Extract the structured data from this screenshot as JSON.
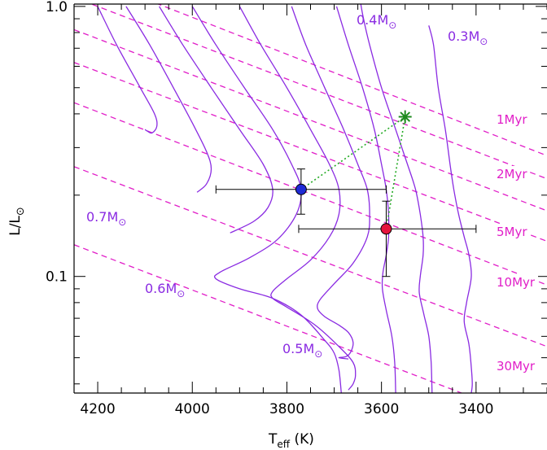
{
  "chart_data": {
    "type": "scatter",
    "xlabel": {
      "main": "T",
      "sub": "eff",
      "unit": " (K)"
    },
    "ylabel": {
      "main": "L/L",
      "sun": "⊙"
    },
    "x_axis": {
      "reversed": true,
      "xlim": [
        4250,
        3250
      ],
      "ticks": [
        4200,
        4000,
        3800,
        3600,
        3400
      ],
      "tick_labels": [
        "4200",
        "4000",
        "3800",
        "3600",
        "3400"
      ]
    },
    "y_axis": {
      "log": true,
      "ylim": [
        0.037,
        1.02
      ],
      "ticks": [
        0.1,
        1.0
      ],
      "tick_labels": [
        "0.1",
        "1.0"
      ]
    },
    "mass_tracks": {
      "color": "#8a2be2",
      "labels": [
        {
          "text": "0.7M",
          "sun": "⊙"
        },
        {
          "text": "0.6M",
          "sun": "⊙"
        },
        {
          "text": "0.5M",
          "sun": "⊙"
        },
        {
          "text": "0.4M",
          "sun": "⊙"
        },
        {
          "text": "0.3M",
          "sun": "⊙"
        }
      ],
      "tracks": [
        [
          [
            4200,
            1.0
          ],
          [
            4160,
            0.72
          ],
          [
            4110,
            0.5
          ],
          [
            4080,
            0.4
          ],
          [
            4075,
            0.36
          ],
          [
            4085,
            0.34
          ],
          [
            4095,
            0.345
          ],
          [
            4100,
            0.35
          ]
        ],
        [
          [
            4140,
            1.0
          ],
          [
            4090,
            0.72
          ],
          [
            4040,
            0.5
          ],
          [
            4000,
            0.37
          ],
          [
            3970,
            0.29
          ],
          [
            3960,
            0.25
          ],
          [
            3970,
            0.22
          ],
          [
            3990,
            0.205
          ]
        ],
        [
          [
            4070,
            1.0
          ],
          [
            4020,
            0.72
          ],
          [
            3960,
            0.5
          ],
          [
            3900,
            0.35
          ],
          [
            3850,
            0.26
          ],
          [
            3830,
            0.21
          ],
          [
            3840,
            0.18
          ],
          [
            3870,
            0.16
          ],
          [
            3920,
            0.145
          ]
        ],
        [
          [
            4000,
            1.0
          ],
          [
            3950,
            0.72
          ],
          [
            3890,
            0.5
          ],
          [
            3830,
            0.35
          ],
          [
            3790,
            0.26
          ],
          [
            3770,
            0.21
          ],
          [
            3780,
            0.17
          ],
          [
            3820,
            0.137
          ],
          [
            3880,
            0.117
          ],
          [
            3940,
            0.104
          ],
          [
            3950,
            0.098
          ],
          [
            3900,
            0.09
          ],
          [
            3830,
            0.083
          ],
          [
            3770,
            0.072
          ],
          [
            3720,
            0.058
          ],
          [
            3700,
            0.052
          ],
          [
            3690,
            0.045
          ],
          [
            3685,
            0.037
          ]
        ],
        [
          [
            3900,
            1.0
          ],
          [
            3855,
            0.72
          ],
          [
            3800,
            0.5
          ],
          [
            3750,
            0.35
          ],
          [
            3710,
            0.26
          ],
          [
            3690,
            0.21
          ],
          [
            3690,
            0.17
          ],
          [
            3710,
            0.14
          ],
          [
            3750,
            0.115
          ],
          [
            3800,
            0.098
          ],
          [
            3830,
            0.088
          ],
          [
            3830,
            0.083
          ],
          [
            3800,
            0.077
          ],
          [
            3740,
            0.066
          ],
          [
            3690,
            0.055
          ],
          [
            3660,
            0.048
          ],
          [
            3655,
            0.043
          ],
          [
            3660,
            0.04
          ],
          [
            3670,
            0.038
          ]
        ],
        [
          [
            3790,
            1.0
          ],
          [
            3760,
            0.72
          ],
          [
            3720,
            0.5
          ],
          [
            3680,
            0.35
          ],
          [
            3650,
            0.26
          ],
          [
            3630,
            0.21
          ],
          [
            3625,
            0.17
          ],
          [
            3630,
            0.14
          ],
          [
            3660,
            0.112
          ],
          [
            3700,
            0.094
          ],
          [
            3730,
            0.082
          ],
          [
            3735,
            0.076
          ],
          [
            3720,
            0.071
          ],
          [
            3690,
            0.066
          ],
          [
            3670,
            0.062
          ],
          [
            3660,
            0.057
          ],
          [
            3665,
            0.0525
          ],
          [
            3675,
            0.0505
          ],
          [
            3690,
            0.05
          ],
          [
            3670,
            0.0495
          ]
        ],
        [
          [
            3695,
            1.0
          ],
          [
            3670,
            0.72
          ],
          [
            3640,
            0.5
          ],
          [
            3615,
            0.35
          ],
          [
            3600,
            0.26
          ],
          [
            3590,
            0.21
          ],
          [
            3585,
            0.17
          ],
          [
            3585,
            0.14
          ],
          [
            3590,
            0.12
          ],
          [
            3597,
            0.103
          ],
          [
            3598,
            0.09
          ],
          [
            3590,
            0.075
          ],
          [
            3578,
            0.06
          ],
          [
            3572,
            0.048
          ],
          [
            3570,
            0.037
          ]
        ],
        [
          [
            3645,
            1.05
          ],
          [
            3638,
            0.9
          ],
          [
            3625,
            0.72
          ],
          [
            3600,
            0.5
          ],
          [
            3570,
            0.35
          ],
          [
            3545,
            0.26
          ],
          [
            3528,
            0.21
          ],
          [
            3518,
            0.17
          ],
          [
            3512,
            0.14
          ],
          [
            3512,
            0.12
          ],
          [
            3518,
            0.1
          ],
          [
            3520,
            0.087
          ],
          [
            3510,
            0.072
          ],
          [
            3500,
            0.06
          ],
          [
            3495,
            0.048
          ],
          [
            3493,
            0.037
          ]
        ],
        [
          [
            3500,
            0.85
          ],
          [
            3490,
            0.72
          ],
          [
            3480,
            0.5
          ],
          [
            3465,
            0.35
          ],
          [
            3455,
            0.26
          ],
          [
            3447,
            0.21
          ],
          [
            3437,
            0.17
          ],
          [
            3425,
            0.14
          ],
          [
            3415,
            0.12
          ],
          [
            3410,
            0.1
          ],
          [
            3420,
            0.08
          ],
          [
            3425,
            0.068
          ],
          [
            3415,
            0.056
          ],
          [
            3410,
            0.046
          ],
          [
            3408,
            0.04
          ],
          [
            3410,
            0.037
          ]
        ]
      ]
    },
    "isochrones": {
      "color": "#e11ec8",
      "series": [
        {
          "name": "",
          "label": "1Myr",
          "x": [
            4250,
            3250
          ],
          "y": [
            1.35,
            0.28
          ]
        },
        {
          "name": "",
          "label": "2Myr",
          "x": [
            4250,
            3250
          ],
          "y": [
            0.82,
            0.175
          ]
        },
        {
          "name": "",
          "label": "5Myr",
          "x": [
            4250,
            3250
          ],
          "y": [
            0.44,
            0.093
          ]
        },
        {
          "name": "",
          "label": "10Myr",
          "x": [
            4250,
            3250
          ],
          "y": [
            0.255,
            0.055
          ]
        },
        {
          "name": "",
          "label": "30Myr",
          "x": [
            4250,
            3250
          ],
          "y": [
            0.131,
            0.028
          ]
        },
        {
          "name": "",
          "label": "",
          "x": [
            4250,
            3250
          ],
          "y": [
            0.62,
            0.135
          ]
        },
        {
          "name": "",
          "label": "",
          "x": [
            4250,
            3250
          ],
          "y": [
            1.08,
            0.23
          ]
        }
      ]
    },
    "points": [
      {
        "name": "",
        "color": "#1f2bd6",
        "x": 3770,
        "y": 0.21,
        "xerr": [
          3950,
          3590
        ],
        "yerr": [
          0.17,
          0.25
        ]
      },
      {
        "name": "",
        "color": "#e4143c",
        "x": 3590,
        "y": 0.15,
        "xerr": [
          3775,
          3400
        ],
        "yerr": [
          0.1,
          0.19
        ]
      }
    ],
    "combined_point": {
      "color": "#1e8a1e",
      "marker": "asterisk",
      "x": 3550,
      "y": 0.39
    },
    "connector": {
      "color": "#22aa22",
      "style": "dotted"
    }
  }
}
